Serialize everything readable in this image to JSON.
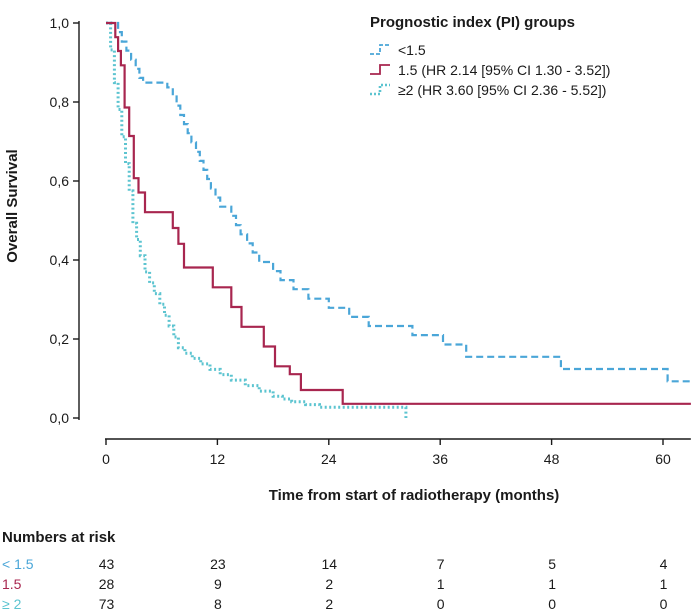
{
  "chart_data": {
    "type": "line",
    "subtype": "kaplan-meier",
    "xlabel": "Time from start of radiotherapy (months)",
    "ylabel": "Overall Survival",
    "xlim": [
      -4,
      63
    ],
    "ylim": [
      0,
      1
    ],
    "x_ticks": [
      0,
      12,
      24,
      36,
      48,
      60
    ],
    "y_ticks": [
      0,
      0.2,
      0.4,
      0.6,
      0.8,
      1.0
    ],
    "y_tick_labels": [
      "0,0",
      "0,2",
      "0,4",
      "0,6",
      "0,8",
      "1,0"
    ],
    "legend": {
      "title": "Prognostic index (PI) groups",
      "position": "top-right"
    },
    "series": [
      {
        "name": "<1.5",
        "legend_label": "<1.5",
        "color": "#4aa6d8",
        "style": "dashed",
        "x": [
          0,
          1.3,
          1.7,
          2.2,
          2.7,
          3.2,
          3.6,
          4.0,
          5.5,
          6.6,
          7.2,
          7.6,
          8.0,
          8.4,
          8.8,
          9.2,
          9.7,
          10.1,
          10.5,
          10.9,
          11.3,
          11.8,
          12.3,
          13.0,
          13.5,
          14.0,
          14.5,
          15.2,
          15.8,
          16.5,
          17.2,
          18.0,
          18.8,
          19.5,
          20.2,
          20.8,
          21.8,
          23.0,
          24.0,
          25.0,
          26.2,
          27.3,
          28.3,
          29.5,
          30.8,
          33.0,
          36.3,
          38.8,
          49.0,
          60.5,
          63
        ],
        "y": [
          1.0,
          0.977,
          0.953,
          0.93,
          0.907,
          0.884,
          0.861,
          0.849,
          0.849,
          0.837,
          0.814,
          0.791,
          0.767,
          0.744,
          0.721,
          0.698,
          0.674,
          0.651,
          0.628,
          0.605,
          0.581,
          0.558,
          0.535,
          0.535,
          0.512,
          0.488,
          0.465,
          0.442,
          0.419,
          0.395,
          0.395,
          0.372,
          0.349,
          0.349,
          0.326,
          0.326,
          0.302,
          0.302,
          0.279,
          0.279,
          0.256,
          0.256,
          0.233,
          0.233,
          0.233,
          0.21,
          0.186,
          0.155,
          0.124,
          0.093,
          0.093
        ]
      },
      {
        "name": "1.5",
        "legend_label": "1.5 (HR 2.14 [95% CI 1.30 - 3.52])",
        "color": "#a8264f",
        "style": "solid",
        "x": [
          0,
          1.0,
          1.3,
          1.6,
          2.0,
          2.5,
          3.0,
          3.5,
          4.2,
          6.5,
          7.2,
          7.8,
          8.4,
          10.2,
          11.5,
          12.7,
          13.5,
          14.6,
          16.0,
          17.0,
          18.2,
          19.8,
          21.0,
          25.5,
          63
        ],
        "y": [
          1.0,
          0.964,
          0.929,
          0.893,
          0.786,
          0.714,
          0.607,
          0.571,
          0.521,
          0.521,
          0.481,
          0.441,
          0.381,
          0.381,
          0.331,
          0.331,
          0.281,
          0.231,
          0.231,
          0.181,
          0.131,
          0.111,
          0.071,
          0.036,
          0.036
        ]
      },
      {
        "name": "≥2",
        "legend_label": "≥2 (HR 3.60 [95% CI 2.36 - 5.52])",
        "color": "#5cc4d0",
        "style": "dotted",
        "x": [
          0,
          0.5,
          0.9,
          1.3,
          1.7,
          2.1,
          2.5,
          2.9,
          3.3,
          3.7,
          4.2,
          4.7,
          5.2,
          5.8,
          6.3,
          6.8,
          7.3,
          7.8,
          8.5,
          9.3,
          10.2,
          11.2,
          12.3,
          13.5,
          15.0,
          16.5,
          18.0,
          19.0,
          20.0,
          21.5,
          23.0,
          25.0,
          27.0,
          29.5,
          32.3
        ],
        "y": [
          1.0,
          0.932,
          0.849,
          0.781,
          0.712,
          0.644,
          0.575,
          0.493,
          0.452,
          0.411,
          0.37,
          0.342,
          0.315,
          0.288,
          0.26,
          0.233,
          0.205,
          0.178,
          0.164,
          0.151,
          0.137,
          0.123,
          0.11,
          0.096,
          0.082,
          0.068,
          0.055,
          0.048,
          0.041,
          0.034,
          0.027,
          0.027,
          0.027,
          0.027,
          0.0
        ]
      }
    ]
  },
  "risk_table": {
    "title": "Numbers at risk",
    "rows": [
      {
        "label": "< 1.5",
        "color": "#4aa6d8",
        "values": [
          "43",
          "23",
          "14",
          "7",
          "5",
          "4"
        ]
      },
      {
        "label": "1.5",
        "color": "#a8264f",
        "values": [
          "28",
          "9",
          "2",
          "1",
          "1",
          "1"
        ]
      },
      {
        "label": "≥ 2",
        "color": "#5cc4d0",
        "values": [
          "73",
          "8",
          "2",
          "0",
          "0",
          "0"
        ]
      }
    ]
  }
}
